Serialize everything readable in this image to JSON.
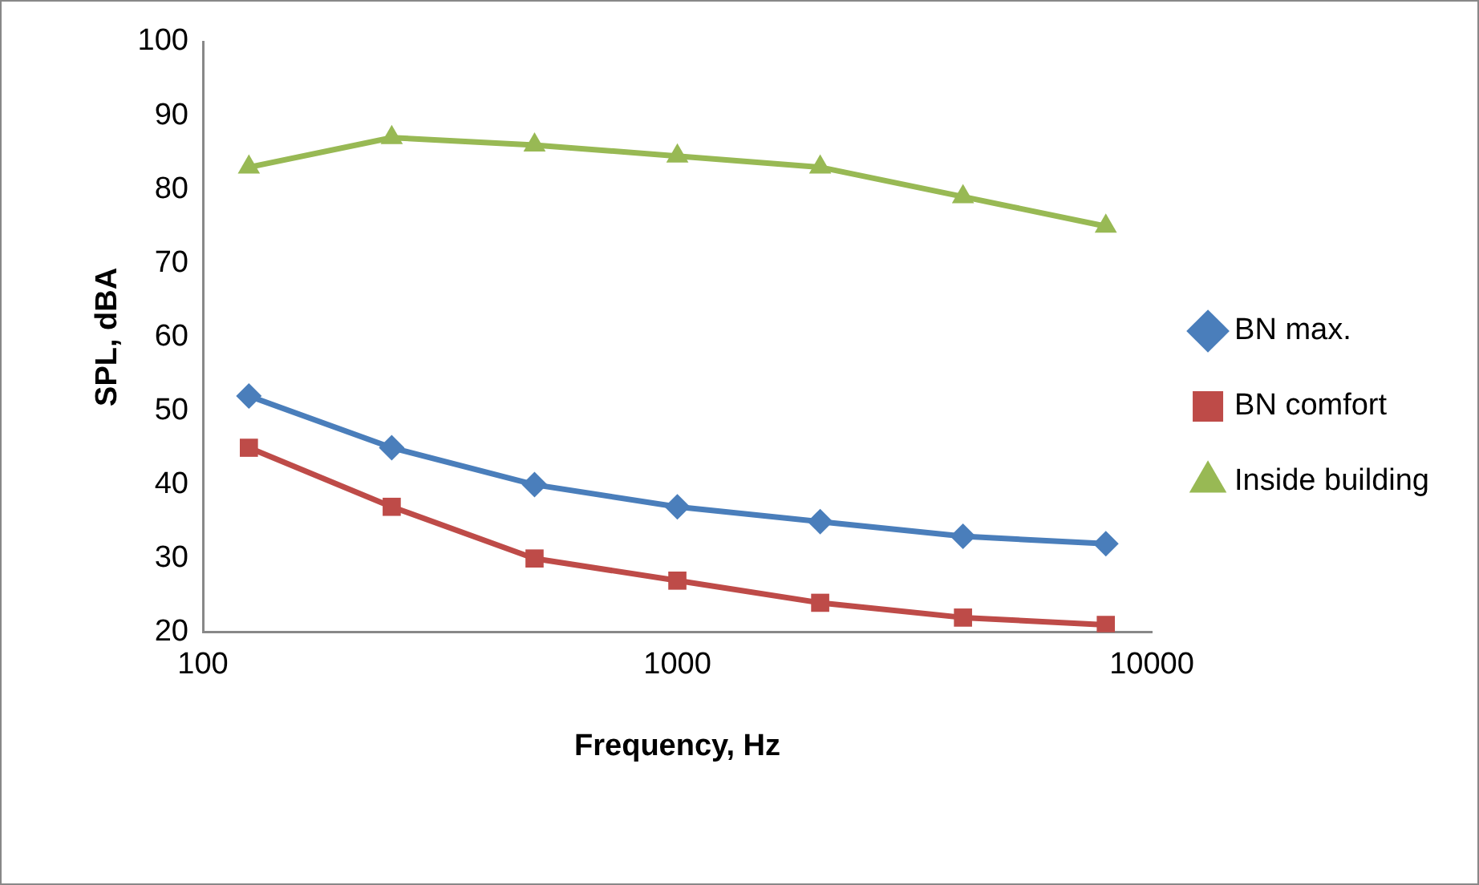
{
  "chart_data": {
    "type": "line",
    "xlabel": "Frequency, Hz",
    "ylabel": "SPL, dBA",
    "x": [
      125,
      250,
      500,
      1000,
      2000,
      4000,
      8000
    ],
    "series": [
      {
        "name": "BN max.",
        "color": "#4a7ebb",
        "marker": "diamond",
        "values": [
          52,
          45,
          40,
          37,
          35,
          33,
          32
        ]
      },
      {
        "name": "BN comfort",
        "color": "#be4b48",
        "marker": "square",
        "values": [
          45,
          37,
          30,
          27,
          24,
          22,
          21
        ]
      },
      {
        "name": "Inside building",
        "color": "#98b954",
        "marker": "triangle",
        "values": [
          83,
          87,
          86,
          84.5,
          83,
          79,
          75
        ]
      }
    ],
    "log": "x",
    "xlim": [
      100,
      10000
    ],
    "xticks": [
      100,
      1000,
      10000
    ],
    "ylim": [
      20,
      100
    ],
    "yticks": [
      20,
      30,
      40,
      50,
      60,
      70,
      80,
      90,
      100
    ],
    "grid": false,
    "legend": "right"
  }
}
